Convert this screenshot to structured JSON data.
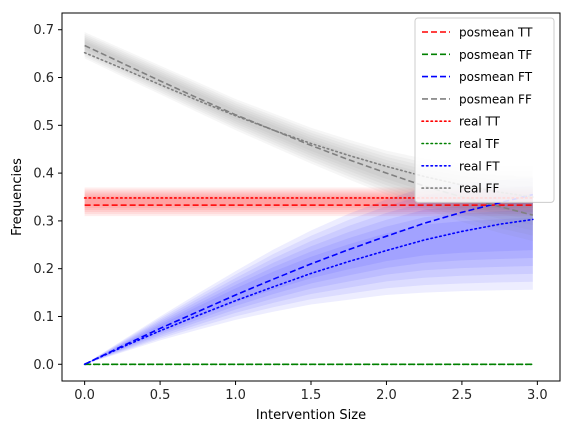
{
  "chart_data": {
    "type": "line",
    "xlabel": "Intervention Size",
    "ylabel": "Frequencies",
    "xlim": [
      -0.15,
      3.15
    ],
    "ylim": [
      -0.035,
      0.735
    ],
    "xticks": [
      0.0,
      0.5,
      1.0,
      1.5,
      2.0,
      2.5,
      3.0
    ],
    "xtick_labels": [
      "0.0",
      "0.5",
      "1.0",
      "1.5",
      "2.0",
      "2.5",
      "3.0"
    ],
    "yticks": [
      0.0,
      0.1,
      0.2,
      0.3,
      0.4,
      0.5,
      0.6,
      0.7
    ],
    "ytick_labels": [
      "0.0",
      "0.1",
      "0.2",
      "0.3",
      "0.4",
      "0.5",
      "0.6",
      "0.7"
    ],
    "grid": false,
    "legend_position": "top-right",
    "x": [
      0.0,
      0.25,
      0.5,
      0.75,
      1.0,
      1.25,
      1.5,
      1.75,
      2.0,
      2.25,
      2.5,
      2.75,
      2.97
    ],
    "series": [
      {
        "name": "posmean TT",
        "color": "#ff0000",
        "style": "dashed",
        "values": [
          0.333,
          0.333,
          0.333,
          0.333,
          0.333,
          0.333,
          0.333,
          0.333,
          0.333,
          0.333,
          0.333,
          0.333,
          0.333
        ]
      },
      {
        "name": "posmean TF",
        "color": "#008000",
        "style": "dashed",
        "values": [
          0.0,
          0.0,
          0.0,
          0.0,
          0.0,
          0.0,
          0.0,
          0.0,
          0.0,
          0.0,
          0.0,
          0.0,
          0.0
        ]
      },
      {
        "name": "posmean FT",
        "color": "#0000ff",
        "style": "dashed",
        "values": [
          0.0,
          0.038,
          0.075,
          0.11,
          0.145,
          0.178,
          0.21,
          0.24,
          0.268,
          0.295,
          0.318,
          0.338,
          0.355
        ]
      },
      {
        "name": "posmean FF",
        "color": "#808080",
        "style": "dashed",
        "values": [
          0.667,
          0.63,
          0.593,
          0.557,
          0.522,
          0.49,
          0.458,
          0.428,
          0.4,
          0.373,
          0.35,
          0.33,
          0.312
        ]
      },
      {
        "name": "real TT",
        "color": "#ff0000",
        "style": "dotted",
        "values": [
          0.348,
          0.348,
          0.348,
          0.348,
          0.348,
          0.348,
          0.348,
          0.348,
          0.348,
          0.348,
          0.348,
          0.348,
          0.348
        ]
      },
      {
        "name": "real TF",
        "color": "#008000",
        "style": "dotted",
        "values": [
          0.0,
          0.0,
          0.0,
          0.0,
          0.0,
          0.0,
          0.0,
          0.0,
          0.0,
          0.0,
          0.0,
          0.0,
          0.0
        ]
      },
      {
        "name": "real FT",
        "color": "#0000ff",
        "style": "dotted",
        "values": [
          0.0,
          0.036,
          0.07,
          0.102,
          0.133,
          0.162,
          0.19,
          0.215,
          0.238,
          0.26,
          0.278,
          0.293,
          0.303
        ]
      },
      {
        "name": "real FF",
        "color": "#808080",
        "style": "dotted",
        "values": [
          0.652,
          0.619,
          0.585,
          0.552,
          0.52,
          0.49,
          0.462,
          0.437,
          0.414,
          0.393,
          0.375,
          0.36,
          0.35
        ]
      }
    ],
    "posterior_bands": [
      {
        "color": "#ff0000",
        "lower": [
          0.31,
          0.31,
          0.31,
          0.31,
          0.31,
          0.31,
          0.31,
          0.31,
          0.31,
          0.31,
          0.31,
          0.31,
          0.31
        ],
        "upper": [
          0.37,
          0.37,
          0.37,
          0.37,
          0.37,
          0.37,
          0.37,
          0.37,
          0.37,
          0.37,
          0.37,
          0.37,
          0.37
        ]
      },
      {
        "color": "#0000ff",
        "lower": [
          0.0,
          0.025,
          0.05,
          0.072,
          0.093,
          0.11,
          0.125,
          0.135,
          0.145,
          0.15,
          0.153,
          0.155,
          0.156
        ],
        "upper": [
          0.0,
          0.05,
          0.1,
          0.148,
          0.195,
          0.24,
          0.28,
          0.315,
          0.345,
          0.37,
          0.38,
          0.385,
          0.39
        ]
      },
      {
        "color": "#808080",
        "lower": [
          0.64,
          0.602,
          0.565,
          0.527,
          0.49,
          0.455,
          0.42,
          0.387,
          0.355,
          0.325,
          0.298,
          0.275,
          0.258
        ],
        "upper": [
          0.695,
          0.66,
          0.625,
          0.59,
          0.555,
          0.525,
          0.495,
          0.47,
          0.447,
          0.43,
          0.42,
          0.415,
          0.415
        ]
      }
    ]
  }
}
